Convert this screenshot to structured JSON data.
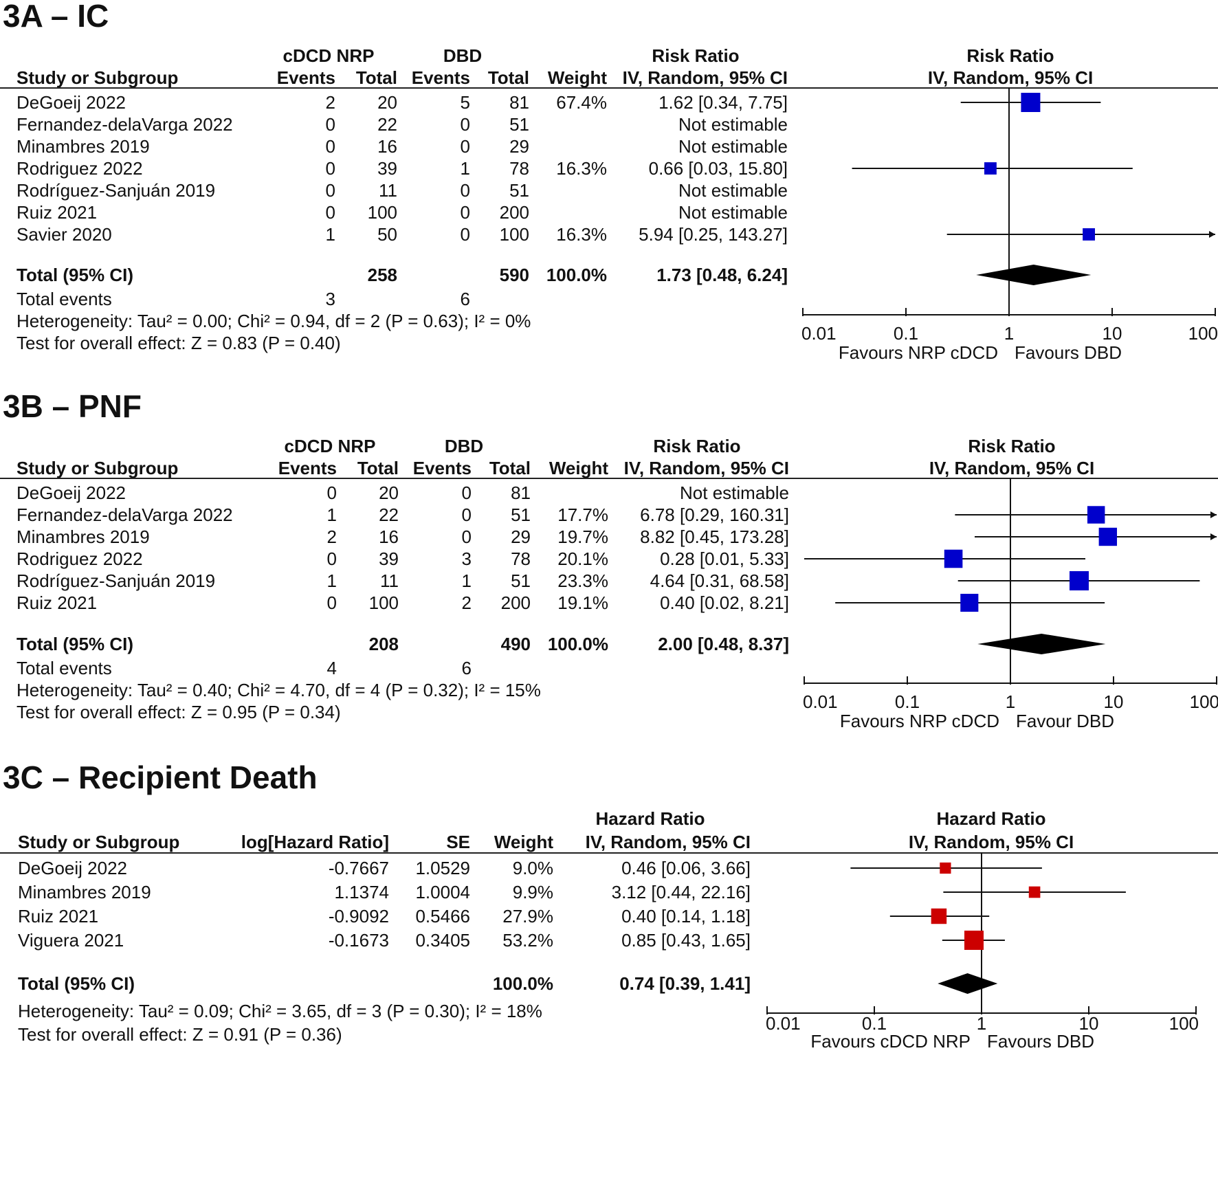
{
  "chart_data": [
    {
      "type": "forest",
      "panel_title": "3A – IC",
      "layout": "rr",
      "headers": {
        "group1": "cDCD NRP",
        "group2": "DBD",
        "study": "Study or Subgroup",
        "events": "Events",
        "total": "Total",
        "weight": "Weight",
        "effect_top": "Risk Ratio",
        "effect_method": "IV, Random, 95% CI",
        "plot_top": "Risk Ratio",
        "plot_method": "IV, Random, 95% CI"
      },
      "studies": [
        {
          "name": "DeGoeij 2022",
          "e1": "2",
          "t1": "20",
          "e2": "5",
          "t2": "81",
          "weight": "67.4%",
          "ci": "1.62 [0.34, 7.75]",
          "est": 1.62,
          "lo": 0.34,
          "hi": 7.75,
          "w": 67.4
        },
        {
          "name": "Fernandez-delaVarga 2022",
          "e1": "0",
          "t1": "22",
          "e2": "0",
          "t2": "51",
          "weight": "",
          "ci": "Not estimable",
          "est": null,
          "lo": null,
          "hi": null,
          "w": 0
        },
        {
          "name": "Minambres 2019",
          "e1": "0",
          "t1": "16",
          "e2": "0",
          "t2": "29",
          "weight": "",
          "ci": "Not estimable",
          "est": null,
          "lo": null,
          "hi": null,
          "w": 0
        },
        {
          "name": "Rodriguez 2022",
          "e1": "0",
          "t1": "39",
          "e2": "1",
          "t2": "78",
          "weight": "16.3%",
          "ci": "0.66 [0.03, 15.80]",
          "est": 0.66,
          "lo": 0.03,
          "hi": 15.8,
          "w": 16.3
        },
        {
          "name": "Rodríguez-Sanjuán 2019",
          "e1": "0",
          "t1": "11",
          "e2": "0",
          "t2": "51",
          "weight": "",
          "ci": "Not estimable",
          "est": null,
          "lo": null,
          "hi": null,
          "w": 0
        },
        {
          "name": "Ruiz 2021",
          "e1": "0",
          "t1": "100",
          "e2": "0",
          "t2": "200",
          "weight": "",
          "ci": "Not estimable",
          "est": null,
          "lo": null,
          "hi": null,
          "w": 0
        },
        {
          "name": "Savier 2020",
          "e1": "1",
          "t1": "50",
          "e2": "0",
          "t2": "100",
          "weight": "16.3%",
          "ci": "5.94 [0.25, 143.27]",
          "est": 5.94,
          "lo": 0.25,
          "hi": 143.27,
          "w": 16.3
        }
      ],
      "total": {
        "label": "Total (95% CI)",
        "t1": "258",
        "t2": "590",
        "weight": "100.0%",
        "ci": "1.73 [0.48, 6.24]",
        "est": 1.73,
        "lo": 0.48,
        "hi": 6.24
      },
      "total_events": {
        "label": "Total events",
        "e1": "3",
        "e2": "6"
      },
      "heterogeneity": "Heterogeneity: Tau² = 0.00; Chi² = 0.94, df = 2 (P = 0.63); I² = 0%",
      "overall_effect": "Test for overall effect: Z = 0.83 (P = 0.40)",
      "axis": {
        "scale": "log",
        "ticks": [
          "0.01",
          "0.1",
          "1",
          "10",
          "100"
        ],
        "xlim": [
          0.01,
          100
        ]
      },
      "favours_left": "Favours NRP cDCD",
      "favours_right": "Favours DBD",
      "marker_color": "#0000cc"
    },
    {
      "type": "forest",
      "panel_title": "3B – PNF",
      "layout": "rr",
      "headers": {
        "group1": "cDCD NRP",
        "group2": "DBD",
        "study": "Study or Subgroup",
        "events": "Events",
        "total": "Total",
        "weight": "Weight",
        "effect_top": "Risk Ratio",
        "effect_method": "IV, Random, 95% CI",
        "plot_top": "Risk Ratio",
        "plot_method": "IV, Random, 95% CI"
      },
      "studies": [
        {
          "name": "DeGoeij 2022",
          "e1": "0",
          "t1": "20",
          "e2": "0",
          "t2": "81",
          "weight": "",
          "ci": "Not estimable",
          "est": null,
          "lo": null,
          "hi": null,
          "w": 0
        },
        {
          "name": "Fernandez-delaVarga 2022",
          "e1": "1",
          "t1": "22",
          "e2": "0",
          "t2": "51",
          "weight": "17.7%",
          "ci": "6.78 [0.29, 160.31]",
          "est": 6.78,
          "lo": 0.29,
          "hi": 160.31,
          "w": 17.7
        },
        {
          "name": "Minambres 2019",
          "e1": "2",
          "t1": "16",
          "e2": "0",
          "t2": "29",
          "weight": "19.7%",
          "ci": "8.82 [0.45, 173.28]",
          "est": 8.82,
          "lo": 0.45,
          "hi": 173.28,
          "w": 19.7
        },
        {
          "name": "Rodriguez 2022",
          "e1": "0",
          "t1": "39",
          "e2": "3",
          "t2": "78",
          "weight": "20.1%",
          "ci": "0.28 [0.01, 5.33]",
          "est": 0.28,
          "lo": 0.01,
          "hi": 5.33,
          "w": 20.1
        },
        {
          "name": "Rodríguez-Sanjuán 2019",
          "e1": "1",
          "t1": "11",
          "e2": "1",
          "t2": "51",
          "weight": "23.3%",
          "ci": "4.64 [0.31, 68.58]",
          "est": 4.64,
          "lo": 0.31,
          "hi": 68.58,
          "w": 23.3
        },
        {
          "name": "Ruiz 2021",
          "e1": "0",
          "t1": "100",
          "e2": "2",
          "t2": "200",
          "weight": "19.1%",
          "ci": "0.40 [0.02, 8.21]",
          "est": 0.4,
          "lo": 0.02,
          "hi": 8.21,
          "w": 19.1
        }
      ],
      "total": {
        "label": "Total (95% CI)",
        "t1": "208",
        "t2": "490",
        "weight": "100.0%",
        "ci": "2.00 [0.48, 8.37]",
        "est": 2.0,
        "lo": 0.48,
        "hi": 8.37
      },
      "total_events": {
        "label": "Total events",
        "e1": "4",
        "e2": "6"
      },
      "heterogeneity": "Heterogeneity: Tau² = 0.40; Chi² = 4.70, df = 4 (P = 0.32); I² = 15%",
      "overall_effect": "Test for overall effect: Z = 0.95 (P = 0.34)",
      "axis": {
        "scale": "log",
        "ticks": [
          "0.01",
          "0.1",
          "1",
          "10",
          "100"
        ],
        "xlim": [
          0.01,
          100
        ]
      },
      "favours_left": "Favours NRP cDCD",
      "favours_right": "Favour DBD",
      "marker_color": "#0000cc"
    },
    {
      "type": "forest",
      "panel_title": "3C – Recipient Death",
      "layout": "hr",
      "headers": {
        "study": "Study or Subgroup",
        "loghr": "log[Hazard Ratio]",
        "se": "SE",
        "weight": "Weight",
        "effect_top": "Hazard Ratio",
        "effect_method": "IV, Random, 95% CI",
        "plot_top": "Hazard Ratio",
        "plot_method": "IV, Random, 95% CI"
      },
      "studies": [
        {
          "name": "DeGoeij 2022",
          "loghr": "-0.7667",
          "se": "1.0529",
          "weight": "9.0%",
          "ci": "0.46 [0.06, 3.66]",
          "est": 0.46,
          "lo": 0.06,
          "hi": 3.66,
          "w": 9.0
        },
        {
          "name": "Minambres 2019",
          "loghr": "1.1374",
          "se": "1.0004",
          "weight": "9.9%",
          "ci": "3.12 [0.44, 22.16]",
          "est": 3.12,
          "lo": 0.44,
          "hi": 22.16,
          "w": 9.9
        },
        {
          "name": "Ruiz 2021",
          "loghr": "-0.9092",
          "se": "0.5466",
          "weight": "27.9%",
          "ci": "0.40 [0.14, 1.18]",
          "est": 0.4,
          "lo": 0.14,
          "hi": 1.18,
          "w": 27.9
        },
        {
          "name": "Viguera 2021",
          "loghr": "-0.1673",
          "se": "0.3405",
          "weight": "53.2%",
          "ci": "0.85 [0.43, 1.65]",
          "est": 0.85,
          "lo": 0.43,
          "hi": 1.65,
          "w": 53.2
        }
      ],
      "total": {
        "label": "Total (95% CI)",
        "weight": "100.0%",
        "ci": "0.74 [0.39, 1.41]",
        "est": 0.74,
        "lo": 0.39,
        "hi": 1.41
      },
      "heterogeneity": "Heterogeneity: Tau² = 0.09; Chi² = 3.65, df = 3 (P = 0.30); I² = 18%",
      "overall_effect": "Test for overall effect: Z = 0.91 (P = 0.36)",
      "axis": {
        "scale": "log",
        "ticks": [
          "0.01",
          "0.1",
          "1",
          "10",
          "100"
        ],
        "xlim": [
          0.01,
          100
        ]
      },
      "favours_left": "Favours cDCD NRP",
      "favours_right": "Favours DBD",
      "marker_color": "#cc0000"
    }
  ]
}
